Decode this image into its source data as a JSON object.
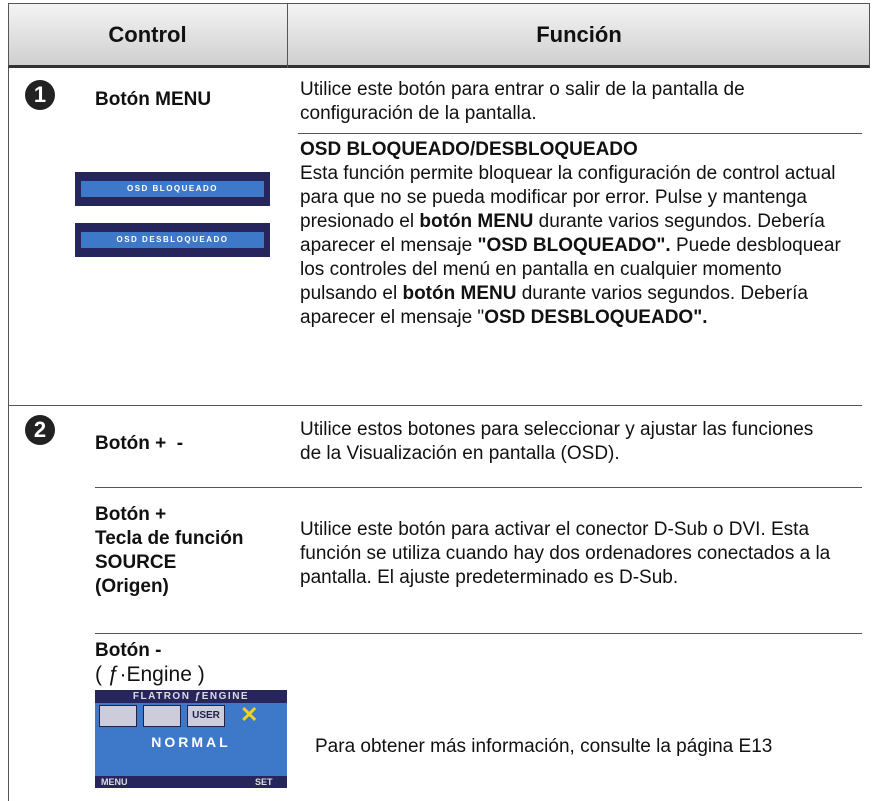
{
  "header": {
    "control": "Control",
    "function": "Función"
  },
  "rows": [
    {
      "number": "1",
      "control": "Botón MENU",
      "function": "Utilice este botón para entrar o salir de la pantalla de configuración de la pantalla.",
      "osd_labels": [
        "OSD BLOQUEADO",
        "OSD DESBLOQUEADO"
      ],
      "osd_title": "OSD BLOQUEADO/DESBLOQUEADO",
      "osd_text": [
        {
          "text": "Esta función permite bloquear la configuración de control actual para que no se pueda modificar por error. Pulse y mantenga presionado el ",
          "bold": false
        },
        {
          "text": "botón MENU",
          "bold": true
        },
        {
          "text": " durante varios segundos. Debería aparecer el mensaje ",
          "bold": false
        },
        {
          "text": "\"OSD BLOQUEADO\".",
          "bold": true
        },
        {
          "text": " Puede desbloquear los controles del menú en pantalla en cualquier momento pulsando el ",
          "bold": false
        },
        {
          "text": "botón MENU",
          "bold": true
        },
        {
          "text": " durante varios segundos. Debería aparecer el mensaje \"",
          "bold": false
        },
        {
          "text": "OSD DESBLOQUEADO\".",
          "bold": true
        }
      ]
    },
    {
      "number": "2",
      "control": "Botón +  -",
      "function": "Utilice estos botones para seleccionar y ajustar las funciones de la Visualización en pantalla (OSD).",
      "items": [
        {
          "control": [
            "Botón +",
            "Tecla de función",
            "SOURCE",
            "(Origen)"
          ],
          "function": "Utilice este botón para activar el conector D-Sub o DVI. Esta función se utiliza cuando hay dos ordenadores conectados a la pantalla. El ajuste predeterminado es D-Sub."
        },
        {
          "control": [
            "Botón -",
            "( ƒ·Engine )"
          ],
          "osd": {
            "title": "FLATRON ƒENGINE",
            "user": "USER",
            "mode": "NORMAL",
            "menu": "MENU",
            "set": "SET"
          },
          "function": "Para obtener más información, consulte la página E13"
        }
      ]
    }
  ]
}
